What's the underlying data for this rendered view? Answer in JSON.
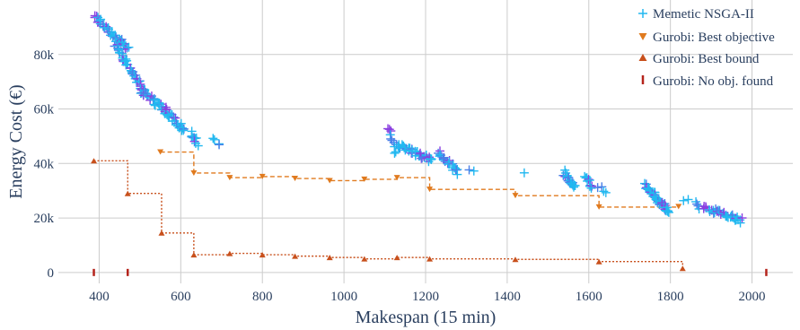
{
  "chart_data": {
    "type": "scatter",
    "xlabel": "Makespan (15 min)",
    "ylabel": "Energy Cost (€)",
    "xlim": [
      300,
      2100
    ],
    "ylim": [
      -4000,
      100000
    ],
    "x_ticks": [
      400,
      600,
      800,
      1000,
      1200,
      1400,
      1600,
      1800,
      2000
    ],
    "y_ticks": [
      0,
      20000,
      40000,
      60000,
      80000
    ],
    "y_tick_labels": [
      "0",
      "20k",
      "40k",
      "60k",
      "80k"
    ],
    "grid": true,
    "legend_position": "top-right",
    "colors": {
      "nsga_light": "#22b8f0",
      "nsga_mid": "#4a7fe8",
      "nsga_dark": "#8a3fe0",
      "best_objective": "#e07a1e",
      "best_bound": "#c8501c",
      "no_obj": "#b5241c",
      "grid": "#cccccc"
    },
    "series": [
      {
        "name": "Memetic NSGA-II",
        "marker": "cross",
        "clusters": [
          {
            "x0": 388,
            "y0": 94000,
            "x1": 470,
            "y1": 82000,
            "n": 40
          },
          {
            "x0": 440,
            "y0": 84000,
            "x1": 510,
            "y1": 66000,
            "n": 45
          },
          {
            "x0": 500,
            "y0": 67000,
            "x1": 560,
            "y1": 60000,
            "n": 30
          },
          {
            "x0": 560,
            "y0": 60000,
            "x1": 610,
            "y1": 52000,
            "n": 25
          },
          {
            "x0": 625,
            "y0": 51000,
            "x1": 640,
            "y1": 47000,
            "n": 10
          },
          {
            "x0": 682,
            "y0": 48500,
            "x1": 695,
            "y1": 47500,
            "n": 4
          },
          {
            "x0": 1110,
            "y0": 53000,
            "x1": 1125,
            "y1": 44000,
            "n": 10
          },
          {
            "x0": 1130,
            "y0": 47000,
            "x1": 1215,
            "y1": 41000,
            "n": 40
          },
          {
            "x0": 1230,
            "y0": 44000,
            "x1": 1280,
            "y1": 37000,
            "n": 25
          },
          {
            "x0": 1305,
            "y0": 37000,
            "x1": 1315,
            "y1": 36500,
            "n": 2
          },
          {
            "x0": 1440,
            "y0": 36500,
            "x1": 1445,
            "y1": 36500,
            "n": 1
          },
          {
            "x0": 1540,
            "y0": 37000,
            "x1": 1565,
            "y1": 31000,
            "n": 20
          },
          {
            "x0": 1590,
            "y0": 35000,
            "x1": 1610,
            "y1": 32000,
            "n": 10
          },
          {
            "x0": 1625,
            "y0": 31000,
            "x1": 1640,
            "y1": 30000,
            "n": 4
          },
          {
            "x0": 1740,
            "y0": 32000,
            "x1": 1795,
            "y1": 22000,
            "n": 45
          },
          {
            "x0": 1830,
            "y0": 27000,
            "x1": 1840,
            "y1": 26500,
            "n": 2
          },
          {
            "x0": 1860,
            "y0": 25000,
            "x1": 1900,
            "y1": 23000,
            "n": 10
          },
          {
            "x0": 1900,
            "y0": 23000,
            "x1": 1975,
            "y1": 19000,
            "n": 30
          }
        ]
      },
      {
        "name": "Gurobi: Best objective",
        "marker": "triangle-down",
        "points": [
          [
            550,
            44200
          ],
          [
            632,
            36500
          ],
          [
            720,
            34800
          ],
          [
            800,
            35200
          ],
          [
            880,
            34500
          ],
          [
            965,
            33700
          ],
          [
            1050,
            34200
          ],
          [
            1130,
            34800
          ],
          [
            1210,
            30500
          ],
          [
            1420,
            28200
          ],
          [
            1625,
            24000
          ],
          [
            1820,
            24200
          ]
        ]
      },
      {
        "name": "Gurobi: Best bound",
        "marker": "triangle-up",
        "points": [
          [
            387,
            41000
          ],
          [
            470,
            29000
          ],
          [
            553,
            14500
          ],
          [
            632,
            6500
          ],
          [
            720,
            7000
          ],
          [
            800,
            6500
          ],
          [
            880,
            6000
          ],
          [
            965,
            5500
          ],
          [
            1050,
            5000
          ],
          [
            1130,
            5500
          ],
          [
            1210,
            5000
          ],
          [
            1420,
            4800
          ],
          [
            1625,
            4000
          ],
          [
            1830,
            1500
          ]
        ]
      },
      {
        "name": "Gurobi: No obj. found",
        "marker": "line-ns",
        "points": [
          [
            387,
            0
          ],
          [
            470,
            0
          ],
          [
            2035,
            0
          ]
        ]
      }
    ]
  }
}
